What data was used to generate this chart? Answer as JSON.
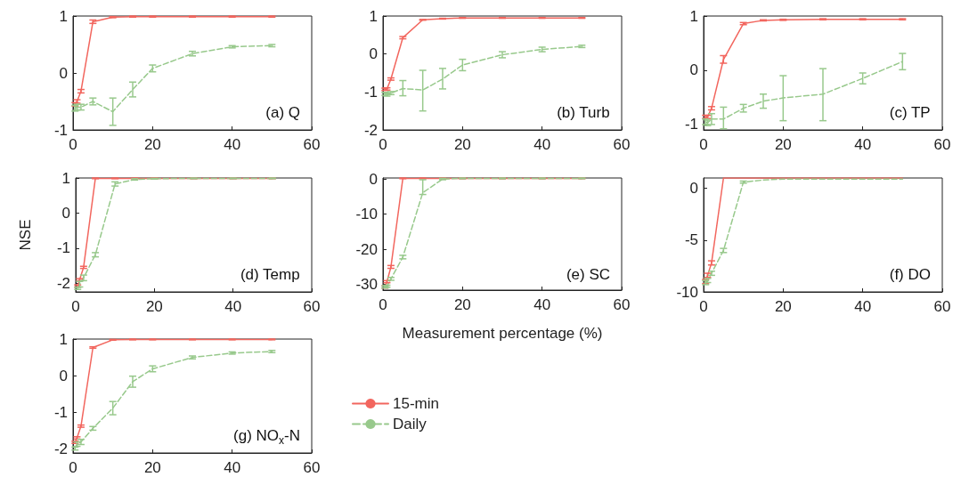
{
  "chart_data": [
    {
      "type": "line",
      "title": "(a) Q",
      "x": [
        0.5,
        1,
        2,
        5,
        10,
        15,
        20,
        30,
        40,
        50
      ],
      "xlim": [
        0,
        60
      ],
      "xticks": [
        0,
        20,
        40,
        60
      ],
      "ylim": [
        -1,
        1
      ],
      "yticks": [
        -1,
        0,
        1
      ],
      "grid": false,
      "legend": false,
      "marker": "none",
      "series": [
        {
          "color": "#f2665e",
          "line_style": "solid",
          "values": [
            -0.55,
            -0.5,
            -0.32,
            0.9,
            0.98,
            0.99,
            0.99,
            0.99,
            0.99,
            0.99
          ],
          "errors": [
            0.03,
            0.03,
            0.03,
            0.03,
            0.01,
            0.01,
            0.01,
            0.01,
            0.01,
            0.01
          ]
        },
        {
          "color": "#98c98c",
          "line_style": "dashed",
          "values": [
            -0.62,
            -0.6,
            -0.6,
            -0.5,
            -0.68,
            -0.29,
            0.08,
            0.34,
            0.46,
            0.48
          ],
          "errors": [
            0.05,
            0.05,
            0.05,
            0.06,
            [
              -0.92,
              -0.44
            ],
            [
              -0.42,
              -0.16
            ],
            0.06,
            0.04,
            0.02,
            0.02
          ]
        }
      ]
    },
    {
      "type": "line",
      "title": "(b) Turb",
      "x": [
        0.5,
        1,
        2,
        5,
        10,
        15,
        20,
        30,
        40,
        50
      ],
      "xlim": [
        0,
        60
      ],
      "xticks": [
        0,
        20,
        40,
        60
      ],
      "ylim": [
        -2,
        1
      ],
      "yticks": [
        -2,
        -1,
        0,
        1
      ],
      "grid": false,
      "legend": false,
      "marker": "none",
      "series": [
        {
          "color": "#f2665e",
          "line_style": "solid",
          "values": [
            -0.93,
            -0.92,
            -0.66,
            0.43,
            0.9,
            0.93,
            0.95,
            0.95,
            0.95,
            0.95
          ],
          "errors": [
            0.03,
            0.03,
            0.03,
            0.03,
            0.01,
            0.01,
            0.01,
            0.01,
            0.01,
            0.01
          ]
        },
        {
          "color": "#98c98c",
          "line_style": "dashed",
          "values": [
            -1.05,
            -1.07,
            -1.03,
            -0.91,
            -0.95,
            -0.66,
            -0.29,
            -0.02,
            0.12,
            0.2
          ],
          "errors": [
            0.04,
            0.04,
            0.04,
            [
              -1.1,
              -0.7
            ],
            [
              -1.5,
              -0.43
            ],
            [
              -0.92,
              -0.38
            ],
            0.15,
            0.08,
            0.06,
            0.03
          ]
        }
      ]
    },
    {
      "type": "line",
      "title": "(c) TP",
      "x": [
        0.5,
        1,
        2,
        5,
        10,
        15,
        20,
        30,
        40,
        50
      ],
      "xlim": [
        0,
        60
      ],
      "xticks": [
        0,
        20,
        40,
        60
      ],
      "ylim": [
        -1.1,
        1
      ],
      "yticks": [
        -1,
        0,
        1
      ],
      "grid": false,
      "legend": false,
      "marker": "none",
      "series": [
        {
          "color": "#f2665e",
          "line_style": "solid",
          "values": [
            -0.86,
            -0.86,
            -0.7,
            0.2,
            0.86,
            0.92,
            0.93,
            0.94,
            0.94,
            0.94
          ],
          "errors": [
            0.03,
            0.03,
            0.03,
            0.07,
            0.02,
            0.01,
            0.01,
            0.01,
            0.01,
            0.01
          ]
        },
        {
          "color": "#98c98c",
          "line_style": "dashed",
          "values": [
            -0.95,
            -0.97,
            -0.9,
            -0.9,
            -0.7,
            -0.57,
            -0.51,
            -0.44,
            -0.15,
            0.16
          ],
          "errors": [
            0.05,
            0.05,
            0.1,
            [
              -1.08,
              -0.68
            ],
            0.07,
            0.13,
            [
              -0.93,
              -0.1
            ],
            [
              -0.93,
              0.03
            ],
            0.1,
            0.15
          ]
        }
      ]
    },
    {
      "type": "line",
      "title": "(d) Temp",
      "ylabel": "NSE",
      "x": [
        0.5,
        1,
        2,
        5,
        10,
        15,
        20,
        30,
        40,
        50
      ],
      "xlim": [
        0,
        60
      ],
      "xticks": [
        0,
        20,
        40,
        60
      ],
      "ylim": [
        -2.25,
        1
      ],
      "yticks": [
        -2,
        -1,
        0,
        1
      ],
      "grid": false,
      "legend": false,
      "marker": "none",
      "series": [
        {
          "color": "#f2665e",
          "line_style": "solid",
          "values": [
            -2.08,
            -1.9,
            -1.55,
            0.99,
            0.99,
            0.99,
            0.99,
            0.99,
            0.99,
            0.99
          ],
          "errors": [
            0.03,
            0.03,
            0.03,
            0.01,
            0.01,
            0.01,
            0.01,
            0.01,
            0.01,
            0.01
          ]
        },
        {
          "color": "#98c98c",
          "line_style": "dashed",
          "values": [
            -2.15,
            -2.03,
            -1.85,
            -1.19,
            0.83,
            0.96,
            0.98,
            0.99,
            0.99,
            0.99
          ],
          "errors": [
            0.03,
            0.08,
            0.08,
            0.06,
            0.06,
            0.02,
            0.01,
            0.01,
            0.01,
            0.01
          ]
        }
      ]
    },
    {
      "type": "line",
      "title": "(e) SC",
      "xlabel": "Measurement percentage (%)",
      "x": [
        0.5,
        1,
        2,
        5,
        10,
        15,
        20,
        30,
        40,
        50
      ],
      "xlim": [
        0,
        60
      ],
      "xticks": [
        0,
        20,
        40,
        60
      ],
      "ylim": [
        -31.6,
        0.3
      ],
      "yticks": [
        -30,
        -20,
        -10,
        0
      ],
      "grid": false,
      "legend": false,
      "marker": "none",
      "series": [
        {
          "color": "#f2665e",
          "line_style": "solid",
          "values": [
            -30.7,
            -29.2,
            -25,
            0.2,
            0.2,
            0.2,
            0.2,
            0.2,
            0.2,
            0.2
          ],
          "errors": [
            0.3,
            0.3,
            0.4,
            0.1,
            0.1,
            0.1,
            0.1,
            0.1,
            0.1,
            0.1
          ]
        },
        {
          "color": "#98c98c",
          "line_style": "dashed",
          "values": [
            -30.7,
            -30.5,
            -28.4,
            -22.2,
            -3.9,
            0,
            0.2,
            0.2,
            0.2,
            0.2
          ],
          "errors": [
            0.3,
            0.3,
            0.4,
            0.5,
            [
              -4.4,
              -0.2
            ],
            0.2,
            0.1,
            0.1,
            0.1,
            0.1
          ]
        }
      ]
    },
    {
      "type": "line",
      "title": "(f) DO",
      "x": [
        0.5,
        1,
        2,
        5,
        10,
        15,
        20,
        30,
        40,
        50
      ],
      "xlim": [
        0,
        60
      ],
      "xticks": [
        0,
        20,
        40,
        60
      ],
      "ylim": [
        -10,
        1
      ],
      "yticks": [
        -10,
        -5,
        0
      ],
      "grid": false,
      "legend": false,
      "marker": "none",
      "series": [
        {
          "color": "#f2665e",
          "line_style": "solid",
          "values": [
            -9,
            -8.4,
            -7.2,
            1,
            1,
            1,
            1,
            1,
            1,
            1
          ],
          "errors": [
            0.2,
            0.2,
            0.2,
            null,
            null,
            null,
            null,
            null,
            null,
            null
          ]
        },
        {
          "color": "#98c98c",
          "line_style": "dashed",
          "values": [
            -9.1,
            -8.9,
            -8.2,
            -6,
            0.6,
            0.8,
            0.9,
            0.9,
            0.9,
            0.9
          ],
          "errors": [
            0.2,
            0.2,
            0.2,
            0.2,
            0.1,
            null,
            null,
            null,
            null,
            null
          ]
        }
      ]
    },
    {
      "type": "line",
      "title": "(g) NO$_{x}$-N",
      "x": [
        0.5,
        1,
        2,
        5,
        10,
        15,
        20,
        30,
        40,
        50
      ],
      "xlim": [
        0,
        60
      ],
      "xticks": [
        0,
        20,
        40,
        60
      ],
      "ylim": [
        -2.1,
        1
      ],
      "yticks": [
        -2,
        -1,
        0,
        1
      ],
      "grid": false,
      "legend": "right",
      "marker": "none",
      "series": [
        {
          "name": "15-min",
          "color": "#f2665e",
          "line_style": "solid",
          "values": [
            -1.81,
            -1.69,
            -1.37,
            0.77,
            0.98,
            0.99,
            0.99,
            0.99,
            0.99,
            0.99
          ],
          "errors": [
            0.03,
            0.03,
            0.03,
            0.02,
            0.01,
            0.01,
            0.01,
            0.01,
            0.01,
            0.01
          ]
        },
        {
          "name": "Daily",
          "color": "#98c98c",
          "line_style": "dashed",
          "values": [
            -1.98,
            -1.86,
            -1.8,
            -1.43,
            -0.88,
            -0.16,
            0.19,
            0.5,
            0.62,
            0.66
          ],
          "errors": [
            0.04,
            0.06,
            0.07,
            0.05,
            0.18,
            0.15,
            0.08,
            0.04,
            0.03,
            0.03
          ]
        }
      ]
    }
  ]
}
